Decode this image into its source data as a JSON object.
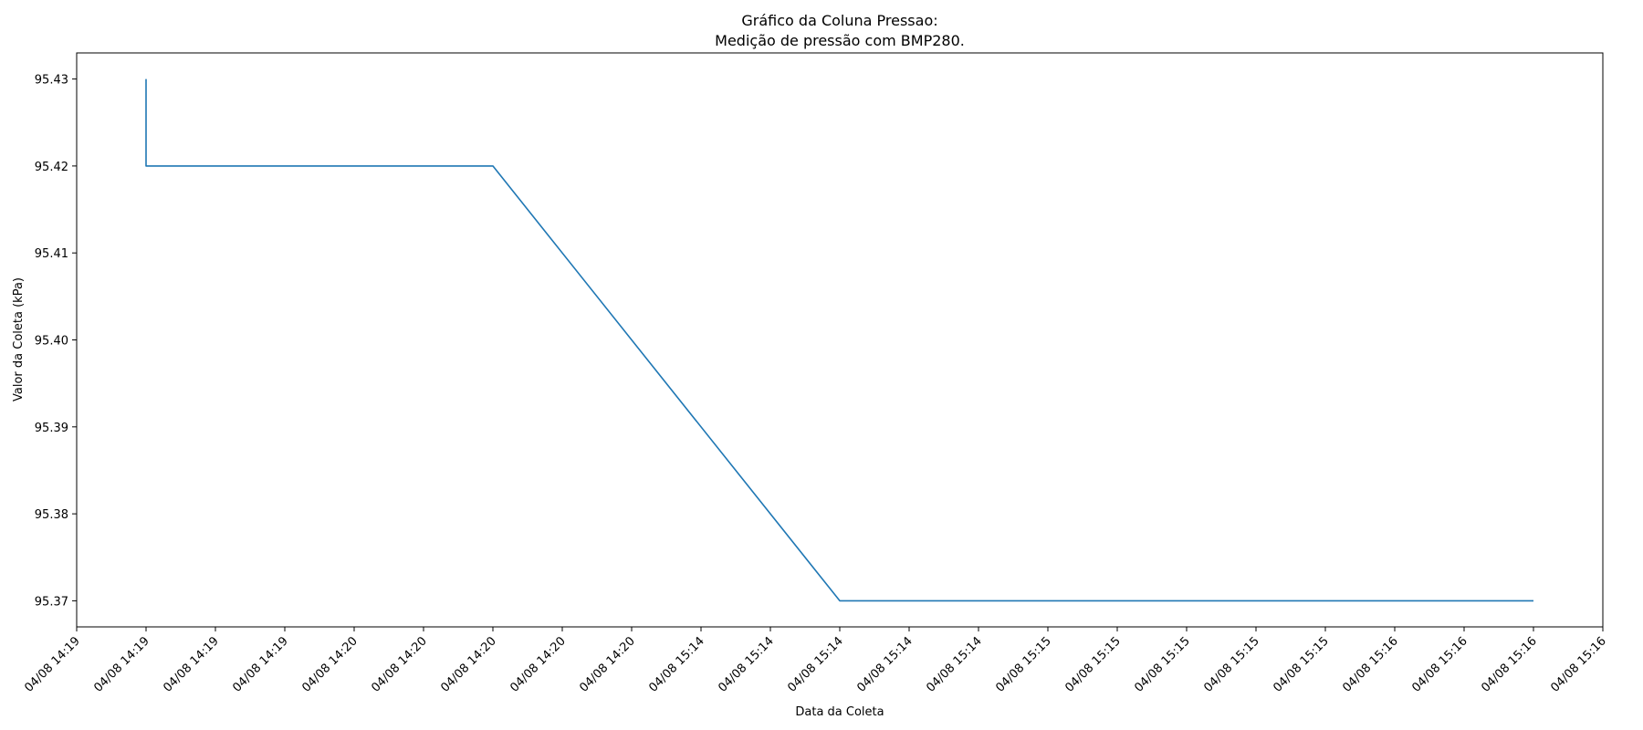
{
  "chart_data": {
    "type": "line",
    "title_line1": "Gráfico da Coluna Pressao:",
    "title_line2": "Medição de pressão com BMP280.",
    "xlabel": "Data da Coleta",
    "ylabel": "Valor da Coleta (kPa)",
    "ylim": [
      95.367,
      95.433
    ],
    "xlim": [
      0,
      22
    ],
    "yticks": [
      "95.43",
      "95.42",
      "95.41",
      "95.40",
      "95.39",
      "95.38",
      "95.37"
    ],
    "xtick_labels": [
      "04/08 14:19",
      "04/08 14:19",
      "04/08 14:19",
      "04/08 14:19",
      "04/08 14:20",
      "04/08 14:20",
      "04/08 14:20",
      "04/08 14:20",
      "04/08 14:20",
      "04/08 15:14",
      "04/08 15:14",
      "04/08 15:14",
      "04/08 15:14",
      "04/08 15:14",
      "04/08 15:15",
      "04/08 15:15",
      "04/08 15:15",
      "04/08 15:15",
      "04/08 15:15",
      "04/08 15:16",
      "04/08 15:16",
      "04/08 15:16",
      "04/08 15:16"
    ],
    "grid": false,
    "series": [
      {
        "color": "#1f77b4",
        "points": [
          {
            "x": 1,
            "y": 95.43
          },
          {
            "x": 1,
            "y": 95.42
          },
          {
            "x": 6,
            "y": 95.42
          },
          {
            "x": 11,
            "y": 95.37
          },
          {
            "x": 21,
            "y": 95.37
          }
        ]
      }
    ]
  }
}
